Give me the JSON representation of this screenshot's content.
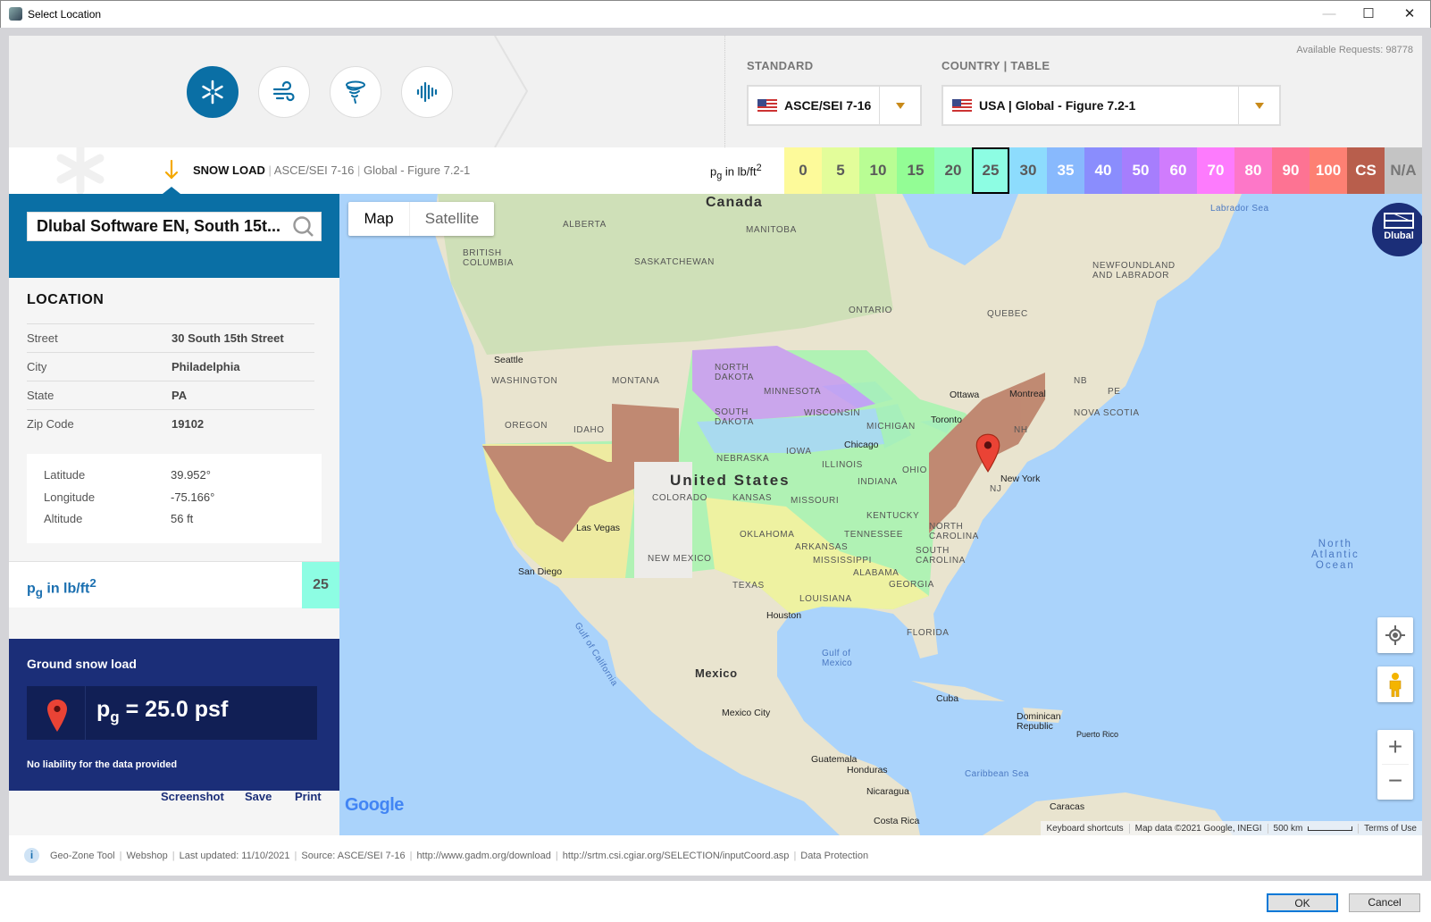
{
  "window": {
    "title": "Select Location"
  },
  "header": {
    "load_types": [
      {
        "name": "snow",
        "active": true
      },
      {
        "name": "wind",
        "active": false
      },
      {
        "name": "tornado",
        "active": false
      },
      {
        "name": "seismic",
        "active": false
      }
    ],
    "available_requests": "Available Requests: 98778",
    "standard_label": "STANDARD",
    "standard_value": "ASCE/SEI 7-16",
    "country_label": "COUNTRY | TABLE",
    "country_value": "USA | Global - Figure 7.2-1"
  },
  "breadcrumb": {
    "load": "SNOW LOAD",
    "standard": "ASCE/SEI 7-16",
    "table": "Global - Figure 7.2-1"
  },
  "legend": {
    "unit_base": "p",
    "unit_sub": "g",
    "unit_text": " in lb/ft",
    "unit_sup": "2",
    "selected": "25",
    "cells": [
      {
        "label": "0",
        "color": "#fdfa9a",
        "text": "#5a5a5a"
      },
      {
        "label": "5",
        "color": "#e3fd9a",
        "text": "#5a5a5a"
      },
      {
        "label": "10",
        "color": "#b9fd94",
        "text": "#5a5a5a"
      },
      {
        "label": "15",
        "color": "#93fd95",
        "text": "#5a5a5a"
      },
      {
        "label": "20",
        "color": "#93fdbd",
        "text": "#5a5a5a"
      },
      {
        "label": "25",
        "color": "#8dfde3",
        "text": "#5a5a5a"
      },
      {
        "label": "30",
        "color": "#8ddcfd",
        "text": "#5a5a5a"
      },
      {
        "label": "35",
        "color": "#88b9fd",
        "text": "#ffffff"
      },
      {
        "label": "40",
        "color": "#8a8dfd",
        "text": "#ffffff"
      },
      {
        "label": "50",
        "color": "#a67efd",
        "text": "#ffffff"
      },
      {
        "label": "60",
        "color": "#d07cfd",
        "text": "#ffffff"
      },
      {
        "label": "70",
        "color": "#fd7bfd",
        "text": "#ffffff"
      },
      {
        "label": "80",
        "color": "#fd77c8",
        "text": "#ffffff"
      },
      {
        "label": "90",
        "color": "#fd7393",
        "text": "#ffffff"
      },
      {
        "label": "100",
        "color": "#fd8073",
        "text": "#ffffff"
      },
      {
        "label": "CS",
        "color": "#b85e4c",
        "text": "#ffffff"
      },
      {
        "label": "N/A",
        "color": "#c4c4c4",
        "text": "#777777"
      }
    ]
  },
  "search": {
    "value": "Dlubal Software EN, South 15t..."
  },
  "location": {
    "heading": "LOCATION",
    "rows": [
      {
        "key": "Street",
        "value": "30 South 15th Street"
      },
      {
        "key": "City",
        "value": "Philadelphia"
      },
      {
        "key": "State",
        "value": "PA"
      },
      {
        "key": "Zip Code",
        "value": "19102"
      }
    ],
    "coords": [
      {
        "key": "Latitude",
        "value": "39.952°"
      },
      {
        "key": "Longitude",
        "value": "-75.166°"
      },
      {
        "key": "Altitude",
        "value": "56 ft"
      }
    ]
  },
  "result": {
    "unit_base": "p",
    "unit_sub": "g",
    "unit_text": " in lb/ft",
    "unit_sup": "2",
    "zone_value": "25",
    "zone_color": "#8dfde3",
    "title": "Ground snow load",
    "formula_base": "p",
    "formula_sub": "g",
    "formula_value": " = 25.0 psf",
    "disclaimer": "No liability for the data provided"
  },
  "actions": {
    "screenshot": "Screenshot",
    "save": "Save",
    "print": "Print"
  },
  "map": {
    "type_map": "Map",
    "type_satellite": "Satellite",
    "logo": "Dlubal",
    "google": "Google",
    "attribution": {
      "shortcuts": "Keyboard shortcuts",
      "data": "Map data ©2021 Google, INEGI",
      "scale": "500 km",
      "terms": "Terms of Use"
    },
    "labels": {
      "canada": "Canada",
      "alberta": "ALBERTA",
      "manitoba": "MANITOBA",
      "bc": "BRITISH\nCOLUMBIA",
      "saskatchewan": "SASKATCHEWAN",
      "ontario": "ONTARIO",
      "quebec": "QUEBEC",
      "newfoundland": "NEWFOUNDLAND\nAND LABRADOR",
      "labrador_sea": "Labrador Sea",
      "montana": "MONTANA",
      "washington": "WASHINGTON",
      "seattle": "Seattle",
      "oregon": "OREGON",
      "idaho": "IDAHO",
      "north_dakota": "NORTH\nDAKOTA",
      "minnesota": "MINNESOTA",
      "south_dakota": "SOUTH\nDAKOTA",
      "wisconsin": "WISCONSIN",
      "michigan": "MICHIGAN",
      "ottawa": "Ottawa",
      "montreal": "Montreal",
      "toronto": "Toronto",
      "nb": "NB",
      "pe": "PE",
      "nova_scotia": "NOVA SCOTIA",
      "nebraska": "NEBRASKA",
      "iowa": "IOWA",
      "chicago": "Chicago",
      "illinois": "ILLINOIS",
      "indiana": "INDIANA",
      "ohio": "OHIO",
      "united_states": "United States",
      "colorado": "COLORADO",
      "kansas": "KANSAS",
      "missouri": "MISSOURI",
      "kentucky": "KENTUCKY",
      "new_york": "New York",
      "nj": "NJ",
      "nh": "NH",
      "oklahoma": "OKLAHOMA",
      "arkansas": "ARKANSAS",
      "tennessee": "TENNESSEE",
      "north_carolina": "NORTH\nCAROLINA",
      "south_carolina": "SOUTH\nCAROLINA",
      "mississippi": "MISSISSIPPI",
      "alabama": "ALABAMA",
      "georgia": "GEORGIA",
      "new_mexico": "NEW MEXICO",
      "texas": "TEXAS",
      "las_vegas": "Las Vegas",
      "san_diego": "San Diego",
      "louisiana": "LOUISIANA",
      "houston": "Houston",
      "florida": "FLORIDA",
      "gulf_mexico": "Gulf of\nMexico",
      "gulf_california": "Gulf of California",
      "mexico": "Mexico",
      "mexico_city": "Mexico City",
      "cuba": "Cuba",
      "dominican": "Dominican\nRepublic",
      "puerto_rico": "Puerto Rico",
      "caribbean": "Caribbean Sea",
      "guatemala": "Guatemala",
      "honduras": "Honduras",
      "nicaragua": "Nicaragua",
      "costa_rica": "Costa Rica",
      "caracas": "Caracas",
      "atlantic": "North\nAtlantic\nOcean"
    }
  },
  "footer": {
    "items": [
      "Geo-Zone Tool",
      "Webshop",
      "Last updated: 11/10/2021",
      "Source: ASCE/SEI 7-16",
      "http://www.gadm.org/download",
      "http://srtm.csi.cgiar.org/SELECTION/inputCoord.asp",
      "Data Protection"
    ]
  },
  "dialog": {
    "ok": "OK",
    "cancel": "Cancel"
  }
}
